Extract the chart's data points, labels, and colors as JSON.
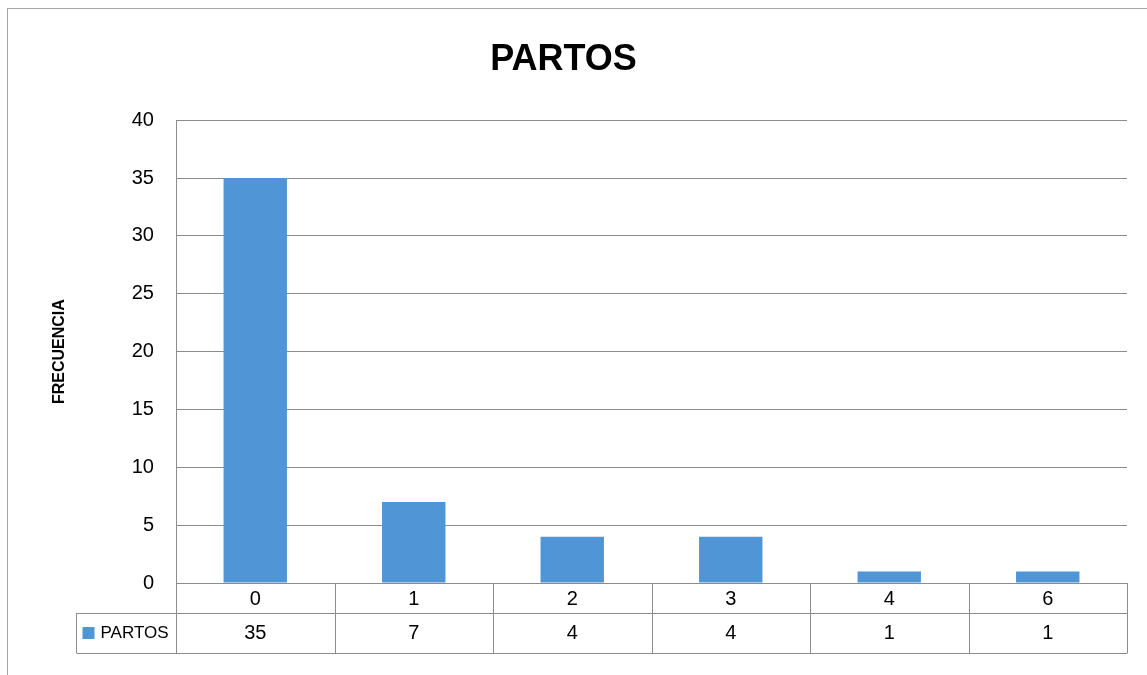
{
  "chart_data": {
    "type": "bar",
    "title": "PARTOS",
    "ylabel": "FRECUENCIA",
    "categories": [
      "0",
      "1",
      "2",
      "3",
      "4",
      "6"
    ],
    "series": [
      {
        "name": "PARTOS",
        "color": "#5096d7",
        "values": [
          35,
          7,
          4,
          4,
          1,
          1
        ]
      }
    ],
    "ylim": [
      0,
      40
    ],
    "yticks": [
      0,
      5,
      10,
      15,
      20,
      25,
      30,
      35,
      40
    ],
    "grid": "y",
    "legend": "bottom left",
    "data_labels": true
  }
}
